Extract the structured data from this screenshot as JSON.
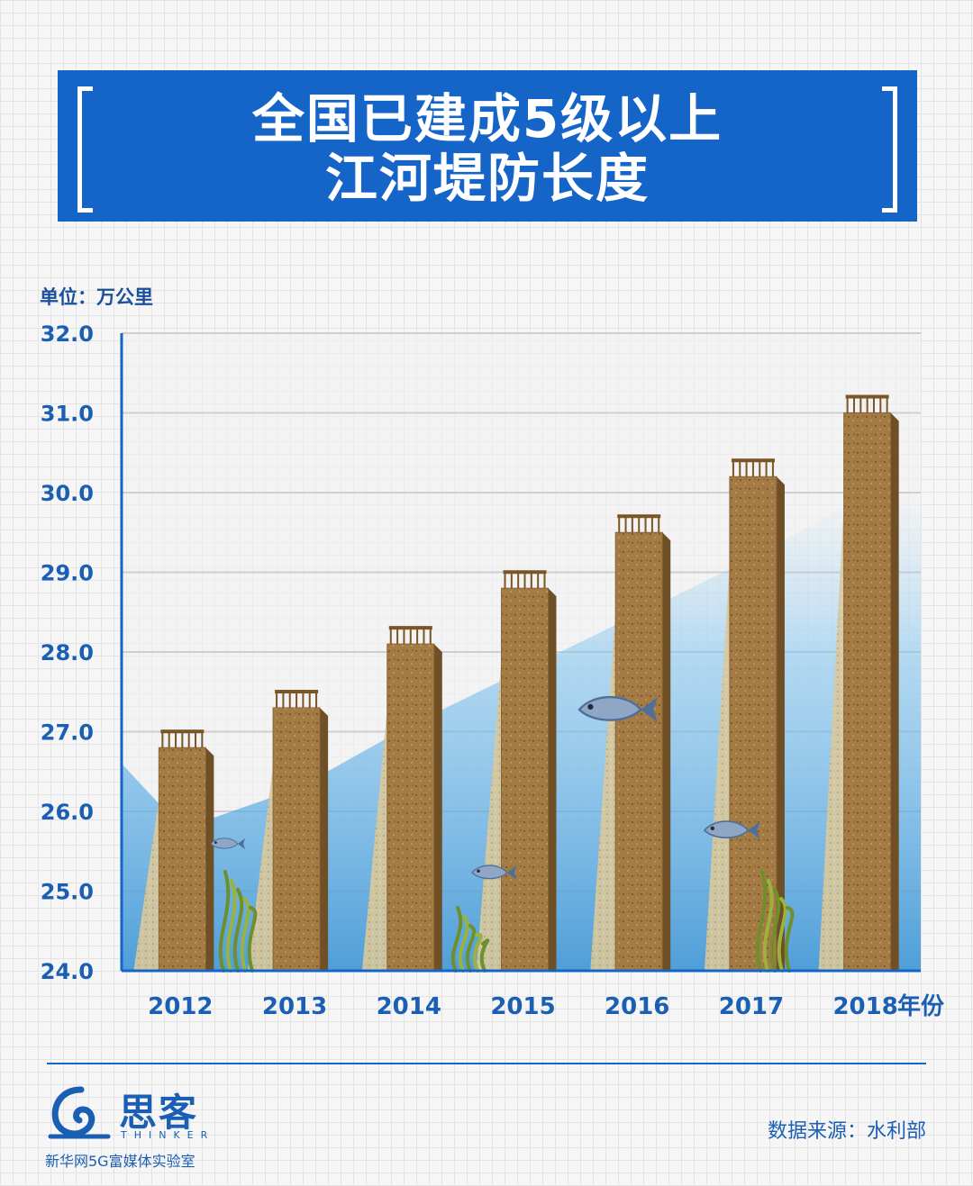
{
  "header": {
    "title_line1": "全国已建成5级以上",
    "title_line2": "江河堤防长度"
  },
  "unit_label": "单位：万公里",
  "chart_data": {
    "type": "bar",
    "title": "全国已建成5级以上江河堤防长度",
    "categories": [
      "2012",
      "2013",
      "2014",
      "2015",
      "2016",
      "2017",
      "2018"
    ],
    "values": [
      26.8,
      27.3,
      28.1,
      28.8,
      29.5,
      30.2,
      31.0
    ],
    "xlabel": "年份",
    "ylabel": "万公里",
    "ylim": [
      24.0,
      32.0
    ],
    "yticks": [
      "24.0",
      "25.0",
      "26.0",
      "27.0",
      "28.0",
      "29.0",
      "30.0",
      "31.0",
      "32.0"
    ],
    "grid": true,
    "colors": {
      "bar_front": "#a57b45",
      "bar_side": "#6f4f25",
      "bar_top": "#c9a26a",
      "railing": "#7a5526",
      "axis": "#1565c8",
      "tick_text": "#1a5fb4",
      "water": "#5fb0e6"
    }
  },
  "footer": {
    "logo_name": "思客",
    "logo_sub": "THINKER",
    "logo_caption": "新华网5G富媒体实验室",
    "source": "数据来源：水利部"
  }
}
